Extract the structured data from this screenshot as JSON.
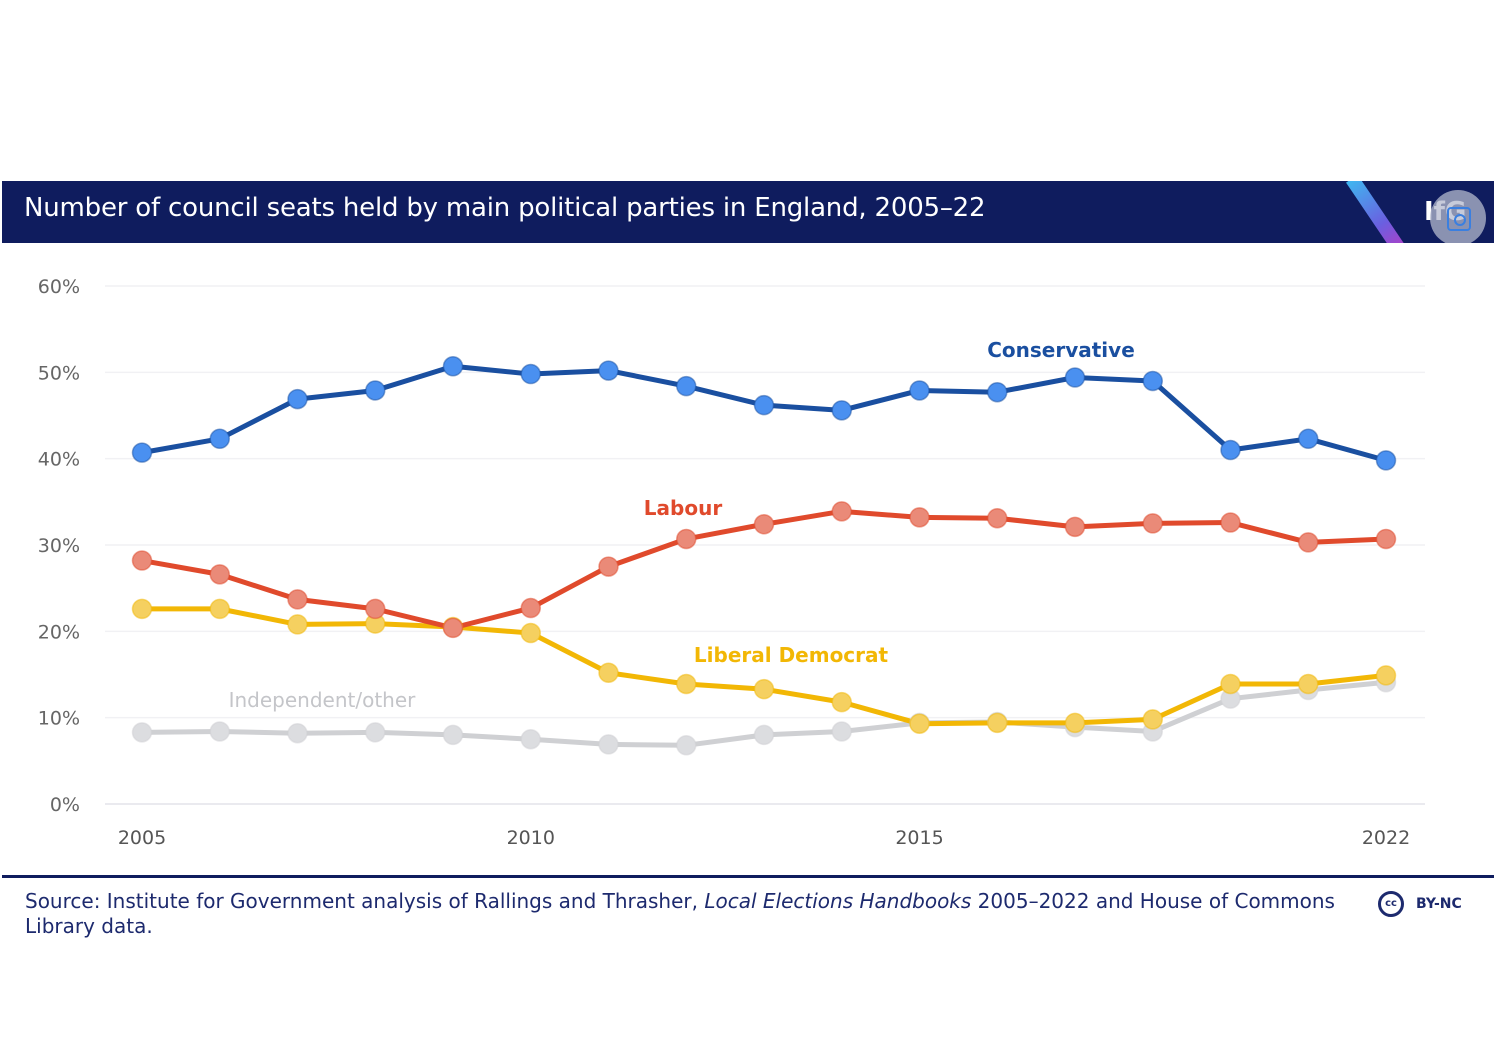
{
  "header": {
    "title": "Number of council seats held by main political parties in England, 2005–22",
    "logo_text": "IfG",
    "icon": "lens-icon"
  },
  "footer": {
    "source_prefix": "Source: Institute for Government analysis of Rallings and Thrasher, ",
    "source_italic": "Local Elections Handbooks",
    "source_suffix": " 2005–2022 and House of Commons Library data.",
    "license_icon": "cc",
    "license_label": "BY-NC"
  },
  "colors": {
    "header_bg": "#0f1c5e",
    "conservative": "#1a4fa0",
    "conservative_marker": "#4a90f0",
    "labour": "#e04a2c",
    "labour_marker": "#ea8a78",
    "libdem": "#f2b705",
    "libdem_marker": "#f5d060",
    "independent": "#cfd0d3",
    "independent_marker": "#dcdde0"
  },
  "chart_data": {
    "type": "line",
    "title": "Number of council seats held by main political parties in England, 2005–22",
    "xlabel": "",
    "ylabel": "",
    "x": [
      2005,
      2006,
      2007,
      2008,
      2009,
      2010,
      2011,
      2012,
      2013,
      2014,
      2015,
      2016,
      2017,
      2018,
      2019,
      2021,
      2022
    ],
    "x_ticks": [
      "2005",
      "2010",
      "2015",
      "2022"
    ],
    "x_tick_values": [
      2005,
      2010,
      2015,
      2022
    ],
    "y_ticks": [
      "0%",
      "10%",
      "20%",
      "30%",
      "40%",
      "50%",
      "60%"
    ],
    "y_tick_values": [
      0,
      10,
      20,
      30,
      40,
      50,
      60
    ],
    "ylim": [
      0,
      60
    ],
    "grid": true,
    "legend": "inline labels",
    "series": [
      {
        "name": "Conservative",
        "key": "conservative",
        "values": [
          40.7,
          42.3,
          46.9,
          47.9,
          50.7,
          49.8,
          50.2,
          48.4,
          46.2,
          45.6,
          47.9,
          47.7,
          49.4,
          49.0,
          41.0,
          42.3,
          39.8
        ]
      },
      {
        "name": "Labour",
        "key": "labour",
        "values": [
          28.2,
          26.6,
          23.7,
          22.6,
          20.4,
          22.7,
          27.5,
          30.7,
          32.4,
          33.9,
          33.2,
          33.1,
          32.1,
          32.5,
          32.6,
          30.3,
          30.7
        ]
      },
      {
        "name": "Liberal Democrat",
        "key": "libdem",
        "values": [
          22.6,
          22.6,
          20.8,
          20.9,
          20.5,
          19.8,
          15.2,
          13.9,
          13.3,
          11.8,
          9.3,
          9.4,
          9.4,
          9.8,
          13.9,
          13.9,
          14.9
        ]
      },
      {
        "name": "Independent/other",
        "key": "independent",
        "values": [
          8.3,
          8.4,
          8.2,
          8.3,
          8.0,
          7.5,
          6.9,
          6.8,
          8.0,
          8.4,
          9.4,
          9.5,
          8.9,
          8.4,
          12.2,
          13.2,
          14.1
        ]
      }
    ],
    "annotations": [
      {
        "text": "Conservative",
        "series": "conservative"
      },
      {
        "text": "Labour",
        "series": "labour"
      },
      {
        "text": "Liberal Democrat",
        "series": "libdem"
      },
      {
        "text": "Independent/other",
        "series": "independent"
      }
    ]
  }
}
